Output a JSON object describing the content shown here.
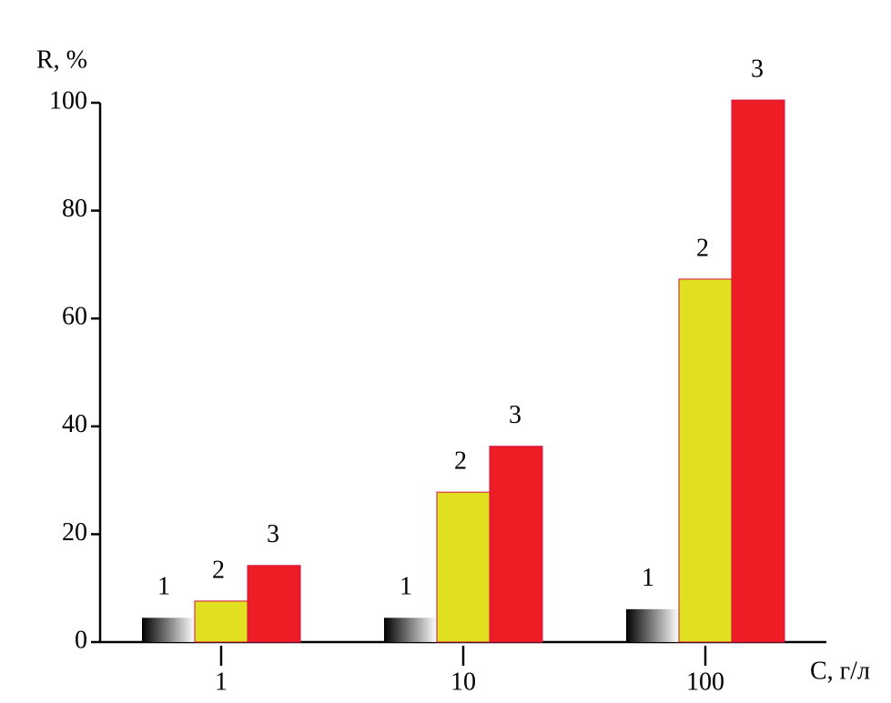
{
  "chart_data": {
    "type": "bar",
    "y_label": "R, %",
    "x_label": "C, г/л",
    "categories": [
      "1",
      "10",
      "100"
    ],
    "series": [
      {
        "name": "1",
        "color": "#000000",
        "values": [
          4.5,
          4.5,
          6.1
        ]
      },
      {
        "name": "2",
        "color": "#e0e020",
        "values": [
          7.6,
          27.8,
          67.3
        ]
      },
      {
        "name": "3",
        "color": "#ee1c25",
        "values": [
          14.2,
          36.3,
          100.5
        ]
      }
    ],
    "ylim": [
      0,
      100
    ],
    "yticks": [
      0,
      20,
      40,
      60,
      80,
      100
    ]
  }
}
